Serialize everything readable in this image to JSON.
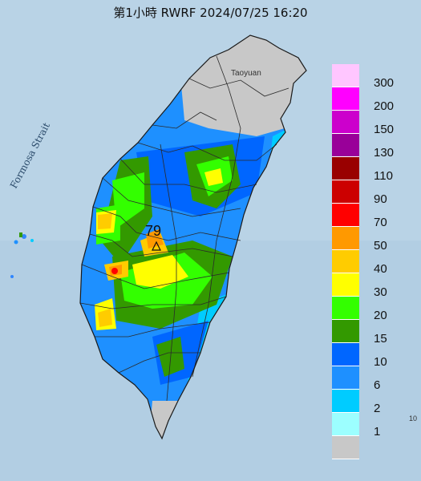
{
  "title": "第1小時  RWRF 2024/07/25 16:20",
  "strait_label": "Formosa Strait",
  "city_label": "Taoyuan",
  "max_value_label": "79",
  "corner_label": "10",
  "colors": {
    "sea": "#b9d3e6",
    "land": "#c8c8c8",
    "outline": "#2a2a2a"
  },
  "legend": [
    {
      "label": "300",
      "color": "#ffc6ff"
    },
    {
      "label": "200",
      "color": "#ff00ff"
    },
    {
      "label": "150",
      "color": "#cc00cc"
    },
    {
      "label": "130",
      "color": "#990099"
    },
    {
      "label": "110",
      "color": "#990000"
    },
    {
      "label": "90",
      "color": "#cc0000"
    },
    {
      "label": "70",
      "color": "#ff0000"
    },
    {
      "label": "50",
      "color": "#ff9900"
    },
    {
      "label": "40",
      "color": "#ffcc00"
    },
    {
      "label": "30",
      "color": "#ffff00"
    },
    {
      "label": "20",
      "color": "#33ff00"
    },
    {
      "label": "15",
      "color": "#339900"
    },
    {
      "label": "10",
      "color": "#0066ff"
    },
    {
      "label": "6",
      "color": "#1e90ff"
    },
    {
      "label": "2",
      "color": "#00ccff"
    },
    {
      "label": "1",
      "color": "#9cffff"
    },
    {
      "label": "",
      "color": "#c8c8c8"
    }
  ]
}
